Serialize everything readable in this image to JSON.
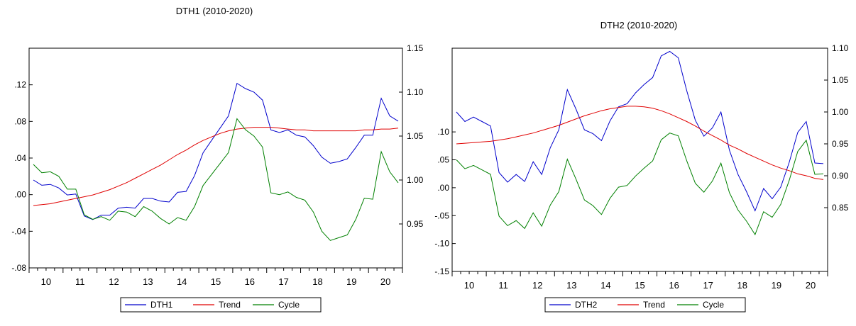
{
  "chart_data": [
    {
      "type": "line",
      "title": "DTH1 (2010-2020)",
      "x_ticks": [
        "10",
        "11",
        "12",
        "13",
        "14",
        "15",
        "16",
        "17",
        "18",
        "19",
        "20"
      ],
      "x_range": [
        0,
        44
      ],
      "left_axis": {
        "range": [
          -0.08,
          0.16
        ],
        "ticks": [
          -0.08,
          -0.04,
          0.0,
          0.04,
          0.08,
          0.12
        ],
        "tick_labels": [
          "-.08",
          "-.04",
          ".00",
          ".04",
          ".08",
          ".12"
        ]
      },
      "right_axis": {
        "range": [
          0.9,
          1.15
        ],
        "ticks": [
          0.95,
          1.0,
          1.05,
          1.1,
          1.15
        ],
        "tick_labels": [
          "0.95",
          "1.00",
          "1.05",
          "1.10",
          "1.15"
        ]
      },
      "legend": [
        "DTH1",
        "Trend",
        "Cycle"
      ],
      "legend_position": "bottom-center",
      "series": [
        {
          "name": "DTH1",
          "axis": "right",
          "color": "#0000cc",
          "values": [
            1.0,
            0.994,
            0.995,
            0.991,
            0.983,
            0.984,
            0.959,
            0.955,
            0.96,
            0.96,
            0.968,
            0.969,
            0.968,
            0.979,
            0.979,
            0.976,
            0.975,
            0.986,
            0.987,
            1.005,
            1.031,
            1.045,
            1.059,
            1.073,
            1.11,
            1.104,
            1.1,
            1.091,
            1.057,
            1.054,
            1.057,
            1.051,
            1.049,
            1.039,
            1.026,
            1.019,
            1.021,
            1.024,
            1.037,
            1.051,
            1.051,
            1.093,
            1.073,
            1.067
          ]
        },
        {
          "name": "Trend",
          "axis": "right",
          "color": "#e00000",
          "values": [
            0.971,
            0.972,
            0.973,
            0.975,
            0.977,
            0.979,
            0.981,
            0.983,
            0.986,
            0.989,
            0.993,
            0.997,
            1.002,
            1.007,
            1.012,
            1.017,
            1.023,
            1.029,
            1.034,
            1.04,
            1.045,
            1.049,
            1.053,
            1.056,
            1.058,
            1.059,
            1.06,
            1.06,
            1.06,
            1.059,
            1.058,
            1.057,
            1.057,
            1.056,
            1.056,
            1.056,
            1.056,
            1.056,
            1.056,
            1.057,
            1.057,
            1.058,
            1.058,
            1.059
          ]
        },
        {
          "name": "Cycle",
          "axis": "left",
          "color": "#008000",
          "values": [
            0.033,
            0.024,
            0.025,
            0.02,
            0.006,
            0.006,
            -0.022,
            -0.027,
            -0.024,
            -0.028,
            -0.018,
            -0.019,
            -0.024,
            -0.013,
            -0.018,
            -0.026,
            -0.032,
            -0.025,
            -0.028,
            -0.013,
            0.01,
            0.022,
            0.034,
            0.046,
            0.083,
            0.071,
            0.064,
            0.052,
            0.002,
            0.0,
            0.003,
            -0.003,
            -0.006,
            -0.019,
            -0.04,
            -0.05,
            -0.047,
            -0.044,
            -0.027,
            -0.004,
            -0.005,
            0.047,
            0.025,
            0.013
          ]
        }
      ]
    },
    {
      "type": "line",
      "title": "DTH2 (2010-2020)",
      "x_ticks": [
        "10",
        "11",
        "12",
        "13",
        "14",
        "15",
        "16",
        "17",
        "18",
        "19",
        "20"
      ],
      "x_range": [
        0,
        44
      ],
      "left_axis": {
        "range": [
          -0.15,
          0.25
        ],
        "ticks": [
          -0.15,
          -0.1,
          -0.05,
          0.0,
          0.05,
          0.1
        ],
        "tick_labels": [
          "-.15",
          "-.10",
          "-.05",
          ".00",
          ".05",
          ".10"
        ]
      },
      "right_axis": {
        "range": [
          0.75,
          1.1
        ],
        "ticks": [
          0.85,
          0.9,
          0.95,
          1.0,
          1.05,
          1.1
        ],
        "tick_labels": [
          "0.85",
          "0.90",
          "0.95",
          "1.00",
          "1.05",
          "1.10"
        ]
      },
      "legend": [
        "DTH2",
        "Trend",
        "Cycle"
      ],
      "legend_position": "bottom-center",
      "series": [
        {
          "name": "DTH2",
          "axis": "right",
          "color": "#0000cc",
          "values": [
            1.0,
            0.985,
            0.992,
            0.985,
            0.978,
            0.905,
            0.89,
            0.902,
            0.891,
            0.922,
            0.902,
            0.944,
            0.972,
            1.035,
            1.005,
            0.972,
            0.966,
            0.955,
            0.986,
            1.008,
            1.013,
            1.03,
            1.043,
            1.054,
            1.088,
            1.095,
            1.085,
            1.033,
            0.987,
            0.962,
            0.975,
            1.0,
            0.94,
            0.902,
            0.875,
            0.845,
            0.88,
            0.864,
            0.882,
            0.921,
            0.968,
            0.985,
            0.92,
            0.919
          ]
        },
        {
          "name": "Trend",
          "axis": "right",
          "color": "#e00000",
          "values": [
            0.95,
            0.951,
            0.952,
            0.953,
            0.954,
            0.956,
            0.958,
            0.961,
            0.964,
            0.967,
            0.971,
            0.975,
            0.979,
            0.984,
            0.989,
            0.994,
            0.998,
            1.002,
            1.005,
            1.007,
            1.009,
            1.009,
            1.008,
            1.006,
            1.002,
            0.997,
            0.991,
            0.985,
            0.978,
            0.97,
            0.963,
            0.956,
            0.948,
            0.942,
            0.935,
            0.929,
            0.923,
            0.917,
            0.912,
            0.908,
            0.903,
            0.9,
            0.896,
            0.894
          ]
        },
        {
          "name": "Cycle",
          "axis": "left",
          "color": "#008000",
          "values": [
            0.05,
            0.034,
            0.04,
            0.032,
            0.024,
            -0.051,
            -0.068,
            -0.059,
            -0.073,
            -0.045,
            -0.069,
            -0.031,
            -0.007,
            0.051,
            0.016,
            -0.022,
            -0.032,
            -0.048,
            -0.019,
            0.001,
            0.004,
            0.021,
            0.035,
            0.048,
            0.086,
            0.098,
            0.093,
            0.048,
            0.008,
            -0.008,
            0.012,
            0.044,
            -0.009,
            -0.04,
            -0.06,
            -0.084,
            -0.043,
            -0.053,
            -0.03,
            0.013,
            0.065,
            0.085,
            0.024,
            0.025
          ]
        }
      ]
    }
  ]
}
